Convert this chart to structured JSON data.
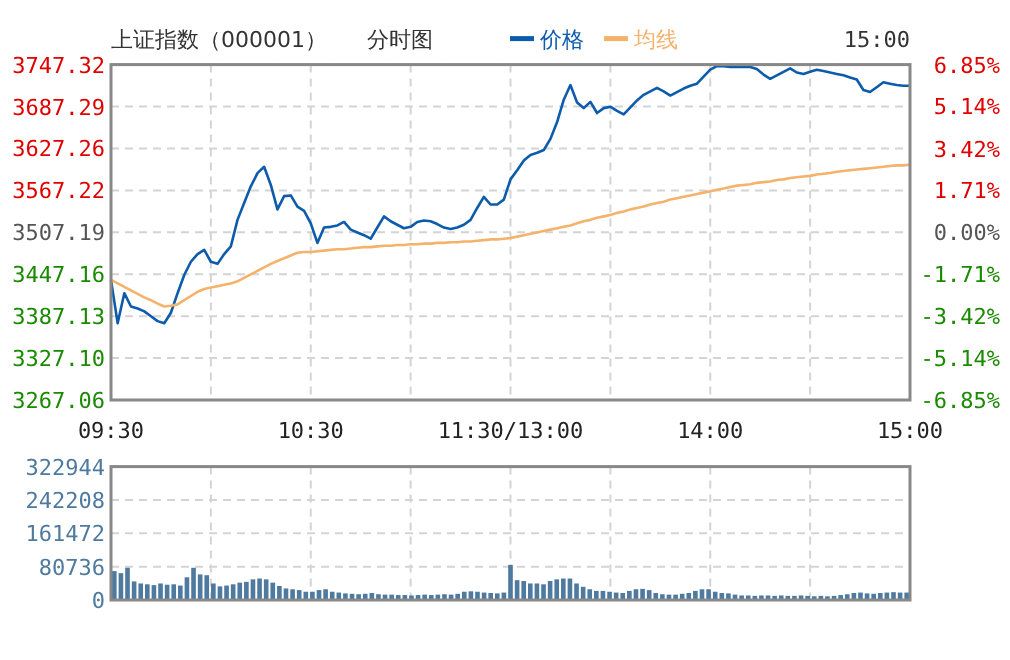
{
  "chart_data": [
    {
      "type": "line",
      "title": "上证指数（000001）",
      "subtitle": "分时图",
      "annotations": [
        "15:00"
      ],
      "legend": "top",
      "grid": true,
      "categories": [
        "09:30",
        null,
        null,
        null,
        null,
        null,
        null,
        null,
        null,
        null,
        null,
        null,
        null,
        null,
        null,
        null,
        null,
        null,
        null,
        null,
        null,
        null,
        null,
        null,
        null,
        null,
        null,
        null,
        null,
        null,
        "10:30",
        null,
        null,
        null,
        null,
        null,
        null,
        null,
        null,
        null,
        null,
        null,
        null,
        null,
        null,
        null,
        null,
        null,
        null,
        null,
        null,
        null,
        null,
        null,
        null,
        null,
        null,
        null,
        null,
        null,
        "11:30/13:00",
        null,
        null,
        null,
        null,
        null,
        null,
        null,
        null,
        null,
        null,
        null,
        null,
        null,
        null,
        null,
        null,
        null,
        null,
        null,
        null,
        null,
        null,
        null,
        null,
        null,
        null,
        null,
        null,
        null,
        "14:00",
        null,
        null,
        null,
        null,
        null,
        null,
        null,
        null,
        null,
        null,
        null,
        null,
        null,
        null,
        null,
        null,
        null,
        null,
        null,
        null,
        null,
        null,
        null,
        null,
        null,
        null,
        null,
        null,
        null,
        "15:00"
      ],
      "ylim": [
        3267.06,
        3747.32
      ],
      "yticks": [
        3267.06,
        {
          "value": 3327.1,
          "label": "3327.10"
        },
        3387.13,
        3447.16,
        3507.19,
        3567.22,
        3627.26,
        3687.29,
        3747.32
      ],
      "y2lim": [
        -6.85,
        6.85
      ],
      "y2ticks": [
        {
          "value": -6.85,
          "label": "-6.85%"
        },
        {
          "value": -5.14,
          "label": "-5.14%"
        },
        {
          "value": -3.42,
          "label": "-3.42%"
        },
        {
          "value": -1.71,
          "label": "-1.71%"
        },
        {
          "value": 0,
          "label": "0.00%"
        },
        {
          "value": 1.71,
          "label": "1.71%"
        },
        {
          "value": 3.42,
          "label": "3.42%"
        },
        {
          "value": 5.14,
          "label": "5.14%"
        },
        {
          "value": 6.85,
          "label": "6.85%"
        }
      ],
      "series": [
        {
          "name": "价格",
          "color": "#0d5cab",
          "values": [
            3439,
            3377,
            3420,
            3401,
            3398,
            3394,
            3387,
            3380,
            3377,
            3392,
            3420,
            3446,
            3465,
            3476,
            3482,
            3465,
            3462,
            3476,
            3487,
            3525,
            3549,
            3573,
            3592,
            3601,
            3575,
            3540,
            3559,
            3560,
            3544,
            3538,
            3520,
            3492,
            3514,
            3515,
            3517,
            3522,
            3511,
            3507,
            3503,
            3498,
            3514,
            3530,
            3523,
            3518,
            3513,
            3515,
            3522,
            3524,
            3523,
            3519,
            3514,
            3512,
            3514,
            3518,
            3525,
            3542,
            3558,
            3547,
            3547,
            3554,
            3583,
            3596,
            3610,
            3618,
            3621,
            3625,
            3641,
            3665,
            3697,
            3718,
            3693,
            3685,
            3694,
            3678,
            3685,
            3687,
            3681,
            3676,
            3686,
            3696,
            3704,
            3709,
            3714,
            3709,
            3703,
            3708,
            3713,
            3717,
            3720,
            3730,
            3740,
            3745,
            3745,
            3744,
            3744,
            3744,
            3744,
            3741,
            3733,
            3727,
            3732,
            3737,
            3742,
            3736,
            3734,
            3737,
            3740,
            3738,
            3736,
            3734,
            3732,
            3729,
            3726,
            3711,
            3708,
            3715,
            3722,
            3720,
            3718,
            3717,
            3717
          ]
        },
        {
          "name": "均线",
          "color": "#f5b26b",
          "values": [
            3439,
            3434,
            3429,
            3424,
            3419,
            3414,
            3410,
            3405,
            3401,
            3402,
            3404,
            3410,
            3416,
            3422,
            3426,
            3428,
            3430,
            3432,
            3434,
            3437,
            3442,
            3447,
            3452,
            3457,
            3462,
            3466,
            3470,
            3474,
            3478,
            3479,
            3479,
            3480,
            3481,
            3482,
            3483,
            3483,
            3484,
            3485,
            3486,
            3486,
            3487,
            3488,
            3488,
            3489,
            3489,
            3490,
            3490,
            3491,
            3491,
            3492,
            3492,
            3493,
            3493,
            3494,
            3494,
            3495,
            3496,
            3497,
            3497,
            3498,
            3499,
            3501,
            3503,
            3505,
            3507,
            3509,
            3511,
            3513,
            3515,
            3517,
            3520,
            3523,
            3525,
            3528,
            3530,
            3532,
            3535,
            3537,
            3540,
            3542,
            3544,
            3547,
            3549,
            3551,
            3554,
            3556,
            3558,
            3560,
            3562,
            3564,
            3566,
            3568,
            3570,
            3572,
            3574,
            3575,
            3576,
            3578,
            3579,
            3580,
            3582,
            3583,
            3585,
            3586,
            3587,
            3588,
            3590,
            3591,
            3592,
            3594,
            3595,
            3596,
            3597,
            3598,
            3599,
            3600,
            3601,
            3602,
            3603,
            3603,
            3604
          ]
        }
      ]
    },
    {
      "type": "bar",
      "color": "#4f7aa0",
      "grid": true,
      "tick_labels": "y",
      "categories": [
        null,
        null,
        null,
        null,
        null,
        null,
        null,
        null,
        null,
        null,
        null,
        null,
        null,
        null,
        null,
        null,
        null,
        null,
        null,
        null,
        null,
        null,
        null,
        null,
        null,
        null,
        null,
        null,
        null,
        null,
        null,
        null,
        null,
        null,
        null,
        null,
        null,
        null,
        null,
        null,
        null,
        null,
        null,
        null,
        null,
        null,
        null,
        null,
        null,
        null,
        null,
        null,
        null,
        null,
        null,
        null,
        null,
        null,
        null,
        null,
        null,
        null,
        null,
        null,
        null,
        null,
        null,
        null,
        null,
        null,
        null,
        null,
        null,
        null,
        null,
        null,
        null,
        null,
        null,
        null,
        null,
        null,
        null,
        null,
        null,
        null,
        null,
        null,
        null,
        null,
        null,
        null,
        null,
        null,
        null,
        null,
        null,
        null,
        null,
        null,
        null,
        null,
        null,
        null,
        null,
        null,
        null,
        null,
        null,
        null,
        null,
        null,
        null,
        null,
        null,
        null,
        null,
        null,
        null,
        null,
        null
      ],
      "ylim": [
        0,
        322944
      ],
      "yticks": [
        0,
        80736,
        161472,
        242208,
        322944
      ],
      "values": [
        70000,
        65000,
        78000,
        45000,
        40000,
        38000,
        36000,
        40000,
        37000,
        38000,
        35000,
        55000,
        78000,
        62000,
        60000,
        40000,
        33000,
        35000,
        38000,
        42000,
        44000,
        50000,
        52000,
        50000,
        42000,
        34000,
        28000,
        26000,
        24000,
        20000,
        20000,
        24000,
        26000,
        20000,
        18000,
        16000,
        15000,
        14000,
        15000,
        17000,
        14000,
        13000,
        13000,
        12000,
        12000,
        11000,
        12000,
        13000,
        12000,
        13000,
        14000,
        13000,
        15000,
        20000,
        21000,
        20000,
        18000,
        17000,
        16000,
        18000,
        85000,
        48000,
        46000,
        40000,
        40000,
        38000,
        46000,
        50000,
        52000,
        52000,
        40000,
        32000,
        26000,
        22000,
        22000,
        20000,
        18000,
        17000,
        22000,
        26000,
        27000,
        24000,
        17000,
        14000,
        13000,
        13000,
        15000,
        17000,
        22000,
        26000,
        26000,
        20000,
        17000,
        16000,
        13000,
        11000,
        11000,
        10000,
        11000,
        11000,
        10000,
        11000,
        10000,
        10000,
        11000,
        10000,
        9000,
        10000,
        9000,
        10000,
        12000,
        14000,
        17000,
        18000,
        16000,
        15000,
        17000,
        18000,
        19000,
        18000,
        18000
      ]
    }
  ]
}
